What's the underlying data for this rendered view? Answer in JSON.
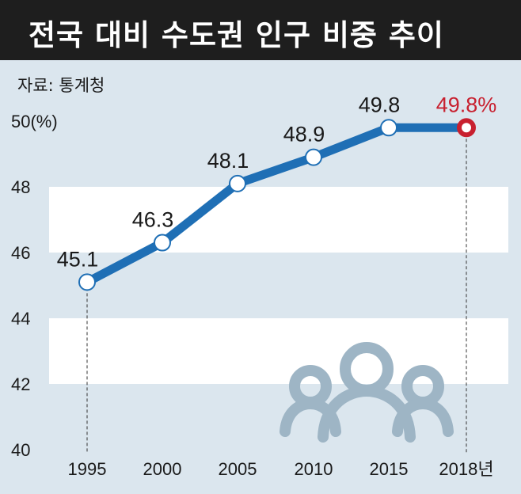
{
  "title": "전국 대비 수도권 인구 비중 추이",
  "source": "자료: 통계청",
  "colors": {
    "line": "#1f6fb5",
    "highlight": "#c8202f",
    "band_white": "#ffffff",
    "band_blue": "#dbe6ee",
    "title_bg": "#1e1e1e",
    "icon": "#9eb5c5"
  },
  "icon": "people-group-icon",
  "chart_data": {
    "type": "line",
    "title": "전국 대비 수도권 인구 비중 추이",
    "x": [
      "1995",
      "2000",
      "2005",
      "2010",
      "2015",
      "2018년"
    ],
    "series": [
      {
        "values": [
          45.1,
          46.3,
          48.1,
          48.9,
          49.8,
          49.8
        ]
      }
    ],
    "data_labels": [
      "45.1",
      "46.3",
      "48.1",
      "48.9",
      "49.8",
      "49.8%"
    ],
    "yticks": [
      "40",
      "42",
      "44",
      "46",
      "48",
      "50(%)"
    ],
    "ylim": [
      40,
      50
    ],
    "xlabel": "",
    "ylabel": "",
    "grid": true,
    "legend": "none"
  }
}
